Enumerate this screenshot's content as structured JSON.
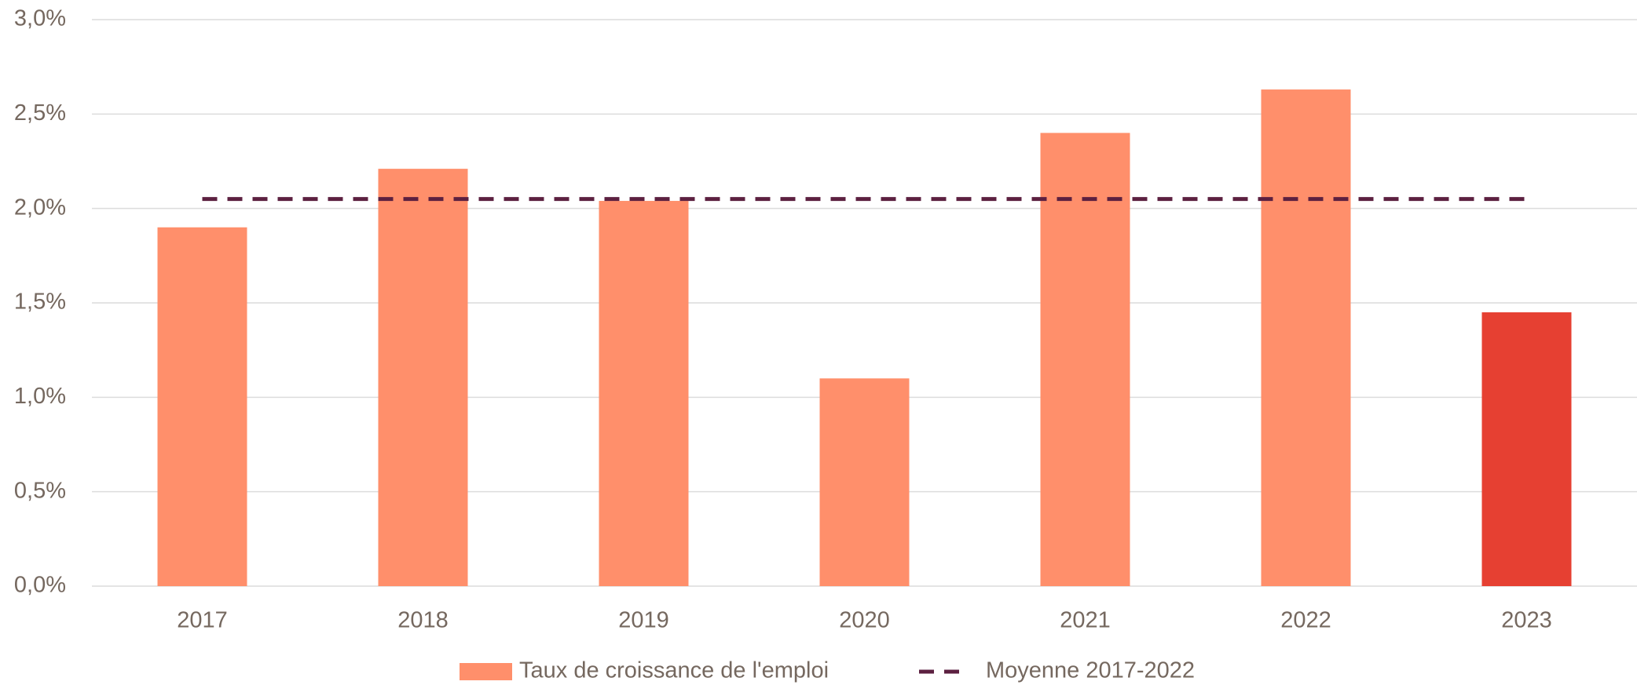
{
  "chart_data": {
    "type": "bar",
    "categories": [
      "2017",
      "2018",
      "2019",
      "2020",
      "2021",
      "2022",
      "2023"
    ],
    "series": [
      {
        "name": "Taux de croissance de l'emploi",
        "type": "bar",
        "color": "#ff8f6b",
        "colors": [
          "#ff8f6b",
          "#ff8f6b",
          "#ff8f6b",
          "#ff8f6b",
          "#ff8f6b",
          "#ff8f6b",
          "#e64032"
        ],
        "values": [
          1.9,
          2.21,
          2.04,
          1.1,
          2.4,
          2.63,
          1.45
        ]
      },
      {
        "name": "Moyenne 2017-2022",
        "type": "line",
        "dashed": true,
        "color": "#5c2040",
        "values": [
          2.05,
          2.05,
          2.05,
          2.05,
          2.05,
          2.05,
          2.05
        ]
      }
    ],
    "ylim": [
      0,
      3
    ],
    "yticks": [
      {
        "value": 0,
        "label": "0,0%"
      },
      {
        "value": 0.5,
        "label": "0,5%"
      },
      {
        "value": 1,
        "label": "1,0%"
      },
      {
        "value": 1.5,
        "label": "1,5%"
      },
      {
        "value": 2,
        "label": "2,0%"
      },
      {
        "value": 2.5,
        "label": "2,5%"
      },
      {
        "value": 3,
        "label": "3,0%"
      }
    ],
    "grid": true,
    "legend": "bottom"
  }
}
